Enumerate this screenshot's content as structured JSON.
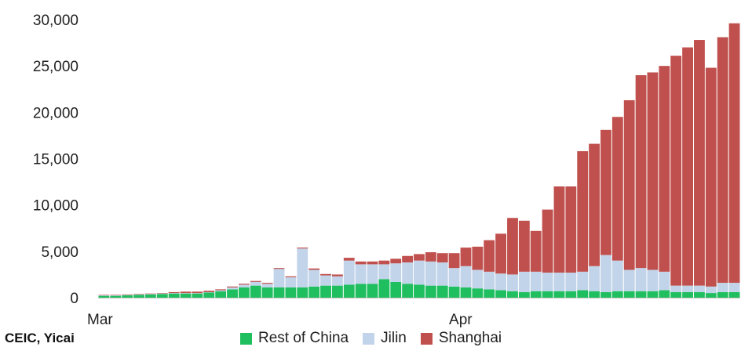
{
  "source_note": "CEIC, Yicai",
  "chart_data": {
    "type": "bar",
    "stacked": true,
    "title": "",
    "xlabel": "",
    "ylabel": "",
    "ylim": [
      0,
      30000
    ],
    "yticks": [
      {
        "value": 0,
        "label": "0"
      },
      {
        "value": 5000,
        "label": "5,000"
      },
      {
        "value": 10000,
        "label": "10,000"
      },
      {
        "value": 15000,
        "label": "15,000"
      },
      {
        "value": 20000,
        "label": "20,000"
      },
      {
        "value": 25000,
        "label": "25,000"
      },
      {
        "value": 30000,
        "label": "30,000"
      }
    ],
    "categories": [
      "03-01",
      "03-02",
      "03-03",
      "03-04",
      "03-05",
      "03-06",
      "03-07",
      "03-08",
      "03-09",
      "03-10",
      "03-11",
      "03-12",
      "03-13",
      "03-14",
      "03-15",
      "03-16",
      "03-17",
      "03-18",
      "03-19",
      "03-20",
      "03-21",
      "03-22",
      "03-23",
      "03-24",
      "03-25",
      "03-26",
      "03-27",
      "03-28",
      "03-29",
      "03-30",
      "03-31",
      "04-01",
      "04-02",
      "04-03",
      "04-04",
      "04-05",
      "04-06",
      "04-07",
      "04-08",
      "04-09",
      "04-10",
      "04-11",
      "04-12",
      "04-13",
      "04-14",
      "04-15",
      "04-16",
      "04-17",
      "04-18",
      "04-19",
      "04-20",
      "04-21",
      "04-22",
      "04-23",
      "04-24"
    ],
    "x_labels": [
      {
        "category": "03-01",
        "label": "Mar"
      },
      {
        "category": "04-01",
        "label": "Apr"
      }
    ],
    "legend_position": "bottom",
    "series": [
      {
        "name": "Rest of China",
        "color": "#1fbf5f",
        "values": [
          200,
          200,
          250,
          300,
          350,
          400,
          450,
          450,
          450,
          550,
          700,
          900,
          1100,
          1300,
          1100,
          1100,
          1100,
          1100,
          1200,
          1300,
          1300,
          1400,
          1500,
          1500,
          2000,
          1700,
          1500,
          1400,
          1300,
          1300,
          1200,
          1100,
          1000,
          900,
          800,
          700,
          600,
          700,
          700,
          700,
          700,
          800,
          700,
          600,
          700,
          700,
          700,
          700,
          800,
          600,
          600,
          600,
          500,
          600,
          600
        ]
      },
      {
        "name": "Jilin",
        "color": "#c2d4ea",
        "values": [
          50,
          50,
          50,
          50,
          50,
          50,
          50,
          50,
          50,
          50,
          100,
          200,
          300,
          400,
          400,
          2000,
          1100,
          4200,
          1800,
          1100,
          1000,
          2600,
          2100,
          2100,
          1600,
          2000,
          2300,
          2600,
          2600,
          2500,
          2000,
          2300,
          2000,
          1900,
          1800,
          1800,
          2200,
          2100,
          2000,
          2000,
          2000,
          2000,
          2700,
          4000,
          3300,
          2300,
          2500,
          2300,
          2000,
          700,
          700,
          700,
          700,
          1000,
          1000
        ]
      },
      {
        "name": "Shanghai",
        "color": "#c0504d",
        "values": [
          50,
          50,
          50,
          50,
          50,
          50,
          100,
          150,
          150,
          150,
          100,
          100,
          100,
          100,
          100,
          100,
          100,
          100,
          150,
          150,
          200,
          300,
          300,
          300,
          400,
          500,
          700,
          700,
          1000,
          1000,
          1600,
          2000,
          2500,
          3400,
          4300,
          6100,
          5500,
          4400,
          6800,
          9300,
          9300,
          13000,
          13200,
          13500,
          15500,
          18300,
          20800,
          21300,
          22200,
          24800,
          25700,
          26500,
          23600,
          26500,
          28000
        ]
      }
    ]
  }
}
